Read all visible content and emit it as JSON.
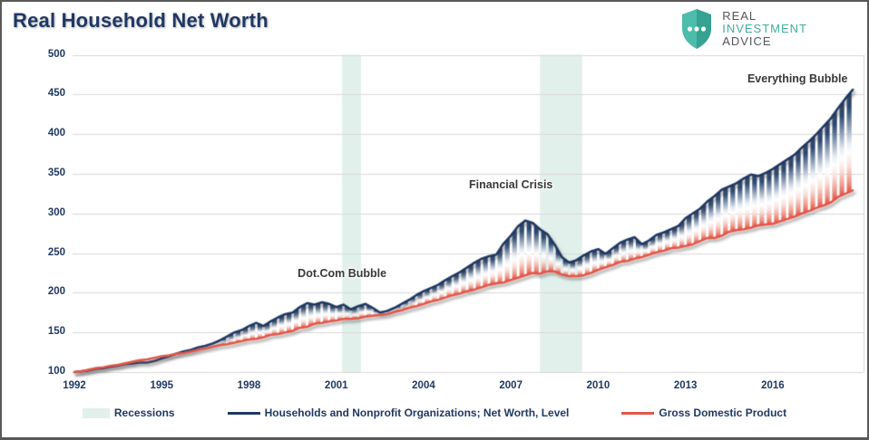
{
  "title": "Real Household Net Worth",
  "logo": {
    "line1": "REAL",
    "line2": "INVESTMENT",
    "line3": "ADVICE"
  },
  "legend": {
    "recessions": "Recessions",
    "net_worth": "Households and Nonprofit Organizations; Net Worth, Level",
    "gdp": "Gross Domestic Product"
  },
  "colors": {
    "navy": "#1F3864",
    "red": "#E2574A",
    "band": "#E1F0EB",
    "grid": "#D9D9D9",
    "annotation": "#383838",
    "logo_teal": "#3FAFA0",
    "logo_gray": "#55565A",
    "shield_light": "#4CBCAB",
    "shield_dark": "#36A291"
  },
  "chart_data": {
    "type": "area",
    "title": "Real Household Net Worth",
    "x_start": 1992,
    "x_step": 0.25,
    "x_end": 2018.75,
    "ylim": [
      100,
      500
    ],
    "yticks": [
      500,
      450,
      400,
      350,
      300,
      250,
      200,
      150,
      100
    ],
    "xticks": [
      1992,
      1995,
      1998,
      2001,
      2004,
      2007,
      2010,
      2013,
      2016
    ],
    "grid": "horizontal",
    "legend_position": "bottom",
    "recessions": [
      [
        2001.2,
        2001.85
      ],
      [
        2008.0,
        2009.45
      ]
    ],
    "annotations": [
      {
        "text": "Dot.Com Bubble",
        "year": 2001.2,
        "value": 224
      },
      {
        "text": "Financial Crisis",
        "year": 2007.0,
        "value": 336
      },
      {
        "text": "Everything Bubble",
        "year": 2016.85,
        "value": 470
      }
    ],
    "series": [
      {
        "name": "Households and Nonprofit Organizations; Net Worth, Level",
        "color": "#1F3864",
        "values": [
          100,
          101,
          102,
          104,
          105,
          107,
          108,
          110,
          111,
          112,
          112,
          114,
          117,
          120,
          123,
          126,
          128,
          131,
          133,
          136,
          140,
          145,
          150,
          153,
          158,
          162,
          158,
          164,
          169,
          173,
          175,
          182,
          187,
          185,
          188,
          186,
          182,
          185,
          179,
          183,
          186,
          181,
          175,
          177,
          181,
          186,
          191,
          197,
          202,
          206,
          210,
          216,
          221,
          226,
          232,
          238,
          243,
          246,
          248,
          262,
          272,
          284,
          291,
          288,
          280,
          274,
          261,
          245,
          238,
          241,
          247,
          252,
          255,
          249,
          256,
          263,
          267,
          270,
          261,
          266,
          273,
          276,
          280,
          284,
          294,
          300,
          306,
          315,
          322,
          330,
          334,
          338,
          344,
          349,
          347,
          351,
          356,
          362,
          368,
          374,
          383,
          391,
          400,
          410,
          420,
          433,
          445,
          456
        ]
      },
      {
        "name": "Gross Domestic Product",
        "color": "#E2574A",
        "values": [
          100,
          101,
          103,
          105,
          106,
          108,
          109,
          111,
          113,
          115,
          116,
          118,
          120,
          121,
          123,
          124,
          126,
          128,
          130,
          132,
          134,
          135,
          137,
          139,
          141,
          142,
          144,
          147,
          148,
          150,
          152,
          156,
          157,
          161,
          162,
          164,
          165,
          167,
          167,
          168,
          170,
          171,
          172,
          173,
          176,
          178,
          181,
          183,
          186,
          189,
          191,
          194,
          197,
          199,
          202,
          204,
          207,
          210,
          212,
          213,
          216,
          219,
          222,
          225,
          224,
          227,
          227,
          223,
          221,
          221,
          222,
          225,
          229,
          232,
          235,
          239,
          240,
          243,
          245,
          248,
          251,
          253,
          256,
          257,
          259,
          261,
          265,
          269,
          269,
          272,
          277,
          279,
          280,
          282,
          285,
          286,
          287,
          290,
          293,
          296,
          300,
          303,
          307,
          310,
          314,
          321,
          325,
          329
        ]
      }
    ]
  }
}
